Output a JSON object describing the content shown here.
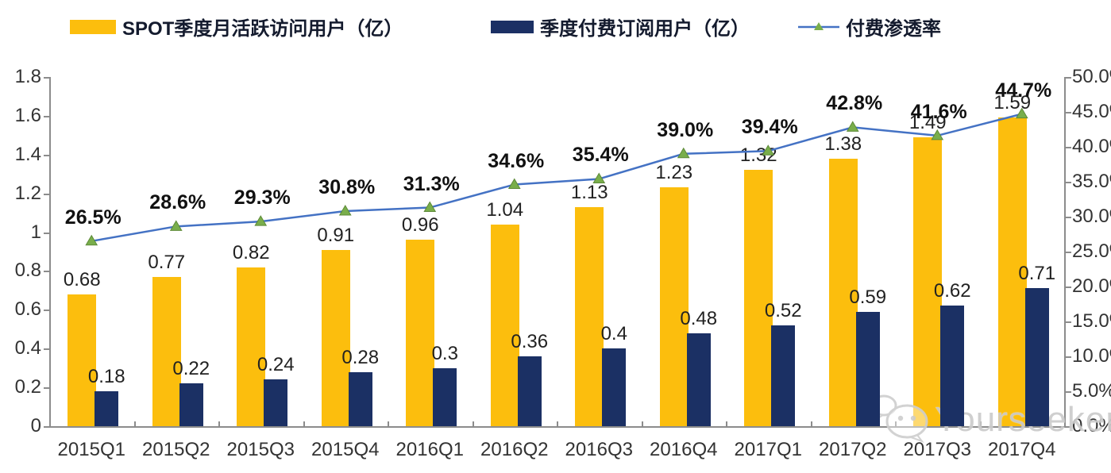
{
  "watermark": {
    "text": "Yourseeker"
  },
  "chart_data": {
    "type": "bar",
    "subtype": "bar-line-combo",
    "grid": false,
    "legend_position": "top",
    "categories": [
      "2015Q1",
      "2015Q2",
      "2015Q3",
      "2015Q4",
      "2016Q1",
      "2016Q2",
      "2016Q3",
      "2016Q4",
      "2017Q1",
      "2017Q2",
      "2017Q3",
      "2017Q4"
    ],
    "series": [
      {
        "name": "SPOT季度月活跃访问用户（亿）",
        "type": "bar",
        "axis": "left",
        "color": "#FCBE0D",
        "values": [
          0.68,
          0.77,
          0.82,
          0.91,
          0.96,
          1.04,
          1.13,
          1.23,
          1.32,
          1.38,
          1.49,
          1.59
        ],
        "labels": [
          "0.68",
          "0.77",
          "0.82",
          "0.91",
          "0.96",
          "1.04",
          "1.13",
          "1.23",
          "1.32",
          "1.38",
          "1.49",
          "1.59"
        ]
      },
      {
        "name": "季度付费订阅用户（亿）",
        "type": "bar",
        "axis": "left",
        "color": "#1B3064",
        "values": [
          0.18,
          0.22,
          0.24,
          0.28,
          0.3,
          0.36,
          0.4,
          0.48,
          0.52,
          0.59,
          0.62,
          0.71
        ],
        "labels": [
          "0.18",
          "0.22",
          "0.24",
          "0.28",
          "0.3",
          "0.36",
          "0.4",
          "0.48",
          "0.52",
          "0.59",
          "0.62",
          "0.71"
        ]
      },
      {
        "name": "付费渗透率",
        "type": "line",
        "axis": "right",
        "color": "#4472C4",
        "marker": "triangle",
        "marker_color": "#79AE4B",
        "values": [
          26.5,
          28.6,
          29.3,
          30.8,
          31.3,
          34.6,
          35.4,
          39.0,
          39.4,
          42.8,
          41.6,
          44.7
        ],
        "labels": [
          "26.5%",
          "28.6%",
          "29.3%",
          "30.8%",
          "31.3%",
          "34.6%",
          "35.4%",
          "39.0%",
          "39.4%",
          "42.8%",
          "41.6%",
          "44.7%"
        ]
      }
    ],
    "left_axis": {
      "min": 0,
      "max": 1.8,
      "ticks": [
        "0",
        "0.2",
        "0.4",
        "0.6",
        "0.8",
        "1",
        "1.2",
        "1.4",
        "1.6",
        "1.8"
      ]
    },
    "right_axis": {
      "min": 0,
      "max": 50,
      "ticks": [
        "0.0%",
        "5.0%",
        "10.0%",
        "15.0%",
        "20.0%",
        "25.0%",
        "30.0%",
        "35.0%",
        "40.0%",
        "45.0%",
        "50.0%"
      ]
    }
  }
}
